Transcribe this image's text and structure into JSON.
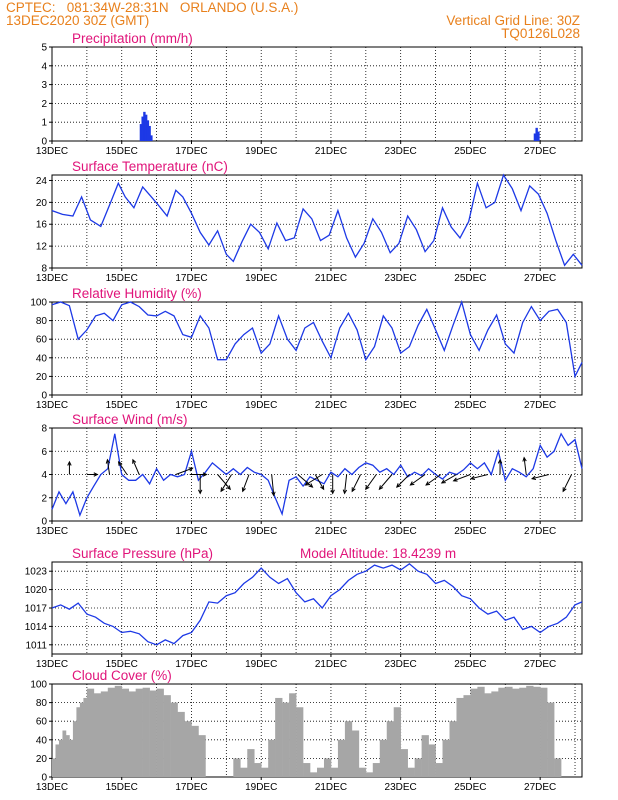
{
  "header": {
    "line1_left": "CPTEC:   081:34W-28:31N   ORLANDO (U.S.A.)",
    "line2_left": "13DEC2020 30Z (GMT)",
    "line1_right": "Vertical Grid Line: 30Z",
    "line2_right": "TQ0126L028"
  },
  "colors": {
    "header": "#e8801c",
    "panel_title": "#e0147a",
    "series": "#1d39e6",
    "cloud": "#a6a6a6",
    "wind_vector": "#000000"
  },
  "x_axis": {
    "tick_labels": [
      "13DEC",
      "15DEC",
      "17DEC",
      "19DEC",
      "21DEC",
      "23DEC",
      "25DEC",
      "27DEC"
    ],
    "tick_days": [
      13,
      15,
      17,
      19,
      21,
      23,
      25,
      27
    ],
    "range_days": [
      13,
      28.2
    ],
    "vertical_grid": "30Z daily"
  },
  "chart_data": [
    {
      "type": "bar",
      "title": "Precipitation (mm/h)",
      "ylim": [
        0,
        5
      ],
      "yticks": [
        0,
        1,
        2,
        3,
        4,
        5
      ],
      "x": [
        15.55,
        15.6,
        15.65,
        15.7,
        15.75,
        15.8,
        15.85,
        26.85,
        26.9,
        26.95
      ],
      "values": [
        0.9,
        1.3,
        1.55,
        1.4,
        1.1,
        0.8,
        0.3,
        0.4,
        0.7,
        0.5
      ]
    },
    {
      "type": "line",
      "title": "Surface Temperature (nC)",
      "ylim": [
        8,
        25
      ],
      "yticks": [
        8,
        12,
        16,
        20,
        24
      ],
      "x": [
        13.0,
        13.3,
        13.6,
        13.85,
        14.1,
        14.4,
        14.7,
        14.9,
        15.1,
        15.35,
        15.6,
        15.85,
        16.05,
        16.3,
        16.55,
        16.75,
        17.0,
        17.25,
        17.5,
        17.75,
        18.0,
        18.2,
        18.45,
        18.7,
        18.95,
        19.2,
        19.45,
        19.7,
        19.95,
        20.2,
        20.45,
        20.7,
        20.95,
        21.2,
        21.45,
        21.7,
        21.95,
        22.2,
        22.45,
        22.7,
        22.95,
        23.2,
        23.45,
        23.7,
        23.95,
        24.2,
        24.45,
        24.7,
        24.95,
        25.2,
        25.45,
        25.7,
        25.95,
        26.2,
        26.45,
        26.7,
        26.95,
        27.2,
        27.45,
        27.7,
        27.95,
        28.2
      ],
      "values": [
        18.5,
        17.8,
        17.5,
        21.0,
        16.8,
        15.6,
        20.3,
        23.5,
        21.0,
        19.0,
        22.8,
        21.0,
        19.5,
        17.5,
        22.2,
        21.0,
        18.0,
        14.5,
        12.2,
        14.8,
        10.5,
        9.2,
        12.8,
        16.0,
        14.5,
        11.5,
        16.2,
        13.0,
        13.5,
        18.8,
        17.0,
        13.0,
        14.0,
        18.5,
        13.5,
        10.0,
        12.5,
        17.0,
        14.5,
        10.8,
        12.5,
        17.5,
        15.0,
        11.0,
        13.0,
        19.0,
        15.5,
        13.5,
        16.5,
        23.5,
        19.0,
        20.0,
        25.0,
        22.5,
        18.5,
        23.0,
        21.5,
        18.0,
        13.0,
        8.5,
        10.5,
        8.5
      ]
    },
    {
      "type": "line",
      "title": "Relative Humidity (%)",
      "ylim": [
        0,
        100
      ],
      "yticks": [
        0,
        20,
        40,
        60,
        80,
        100
      ],
      "x": [
        13.0,
        13.25,
        13.5,
        13.75,
        14.0,
        14.25,
        14.5,
        14.75,
        15.0,
        15.25,
        15.5,
        15.75,
        16.0,
        16.25,
        16.5,
        16.75,
        17.0,
        17.25,
        17.5,
        17.75,
        18.0,
        18.25,
        18.5,
        18.75,
        19.0,
        19.25,
        19.5,
        19.75,
        20.0,
        20.25,
        20.5,
        20.75,
        21.0,
        21.25,
        21.5,
        21.75,
        22.0,
        22.25,
        22.5,
        22.75,
        23.0,
        23.25,
        23.5,
        23.75,
        24.0,
        24.25,
        24.5,
        24.75,
        25.0,
        25.25,
        25.5,
        25.75,
        26.0,
        26.25,
        26.5,
        26.75,
        27.0,
        27.25,
        27.5,
        27.75,
        28.0,
        28.2
      ],
      "values": [
        97,
        100,
        96,
        60,
        70,
        85,
        88,
        80,
        97,
        100,
        95,
        86,
        85,
        90,
        85,
        65,
        62,
        85,
        72,
        38,
        38,
        55,
        65,
        72,
        45,
        55,
        85,
        60,
        48,
        72,
        78,
        58,
        40,
        72,
        88,
        70,
        38,
        52,
        85,
        72,
        45,
        52,
        75,
        92,
        70,
        48,
        75,
        100,
        65,
        48,
        70,
        86,
        55,
        45,
        78,
        95,
        80,
        90,
        92,
        78,
        20,
        35
      ]
    },
    {
      "type": "line",
      "title": "Surface Wind (m/s)",
      "ylim": [
        0,
        8
      ],
      "yticks": [
        0,
        2,
        4,
        6,
        8
      ],
      "x": [
        13.0,
        13.2,
        13.4,
        13.6,
        13.8,
        14.0,
        14.2,
        14.4,
        14.6,
        14.8,
        15.0,
        15.2,
        15.4,
        15.6,
        15.8,
        16.0,
        16.2,
        16.4,
        16.6,
        16.8,
        17.0,
        17.2,
        17.4,
        17.6,
        17.8,
        18.0,
        18.2,
        18.4,
        18.6,
        18.8,
        19.0,
        19.2,
        19.4,
        19.6,
        19.8,
        20.0,
        20.2,
        20.4,
        20.6,
        20.8,
        21.0,
        21.2,
        21.4,
        21.6,
        21.8,
        22.0,
        22.2,
        22.4,
        22.6,
        22.8,
        23.0,
        23.2,
        23.4,
        23.6,
        23.8,
        24.0,
        24.2,
        24.4,
        24.6,
        24.8,
        25.0,
        25.2,
        25.4,
        25.6,
        25.8,
        26.0,
        26.2,
        26.4,
        26.6,
        26.8,
        27.0,
        27.2,
        27.4,
        27.6,
        27.8,
        28.0,
        28.2
      ],
      "values": [
        1.0,
        2.5,
        1.5,
        2.5,
        0.5,
        2.0,
        3.0,
        4.0,
        4.5,
        7.5,
        4.0,
        3.5,
        3.5,
        4.0,
        3.2,
        4.5,
        3.5,
        4.0,
        3.8,
        4.0,
        6.0,
        3.5,
        4.2,
        5.0,
        4.5,
        4.0,
        4.5,
        4.0,
        4.6,
        4.2,
        4.0,
        3.5,
        2.0,
        0.6,
        3.5,
        3.8,
        3.0,
        3.8,
        3.5,
        3.2,
        4.2,
        3.8,
        4.5,
        4.0,
        4.6,
        5.0,
        4.8,
        4.2,
        4.5,
        4.0,
        4.8,
        3.8,
        4.2,
        3.9,
        4.5,
        4.0,
        3.6,
        4.2,
        4.0,
        4.4,
        5.0,
        4.5,
        5.0,
        4.0,
        6.0,
        3.5,
        4.5,
        4.2,
        3.8,
        4.5,
        6.5,
        5.5,
        6.0,
        7.5,
        6.5,
        7.0,
        4.5
      ]
    },
    {
      "type": "line",
      "title": "Surface Pressure (hPa)",
      "annotation": "Model Altitude: 18.4239  m",
      "ylim": [
        1009.5,
        1024.5
      ],
      "yticks": [
        1011,
        1014,
        1017,
        1020,
        1023
      ],
      "x": [
        13.0,
        13.25,
        13.5,
        13.75,
        14.0,
        14.25,
        14.5,
        14.75,
        15.0,
        15.25,
        15.5,
        15.75,
        16.0,
        16.25,
        16.5,
        16.75,
        17.0,
        17.25,
        17.5,
        17.75,
        18.0,
        18.25,
        18.5,
        18.75,
        19.0,
        19.25,
        19.5,
        19.75,
        20.0,
        20.25,
        20.5,
        20.75,
        21.0,
        21.25,
        21.5,
        21.75,
        22.0,
        22.25,
        22.5,
        22.75,
        23.0,
        23.25,
        23.5,
        23.75,
        24.0,
        24.25,
        24.5,
        24.75,
        25.0,
        25.25,
        25.5,
        25.75,
        26.0,
        26.25,
        26.5,
        26.75,
        27.0,
        27.25,
        27.5,
        27.75,
        28.0,
        28.2
      ],
      "values": [
        1017.0,
        1017.5,
        1016.8,
        1017.8,
        1016.0,
        1015.5,
        1014.5,
        1014.0,
        1013.0,
        1013.2,
        1012.8,
        1011.5,
        1011.0,
        1011.8,
        1011.2,
        1012.5,
        1013.0,
        1015.0,
        1018.0,
        1017.8,
        1019.0,
        1019.5,
        1021.0,
        1022.0,
        1023.5,
        1022.0,
        1021.0,
        1021.8,
        1019.5,
        1018.0,
        1018.5,
        1017.0,
        1019.0,
        1020.0,
        1021.5,
        1022.5,
        1023.0,
        1024.0,
        1023.5,
        1024.0,
        1023.2,
        1024.2,
        1023.0,
        1022.5,
        1021.0,
        1021.5,
        1020.5,
        1019.0,
        1018.5,
        1017.0,
        1016.0,
        1016.5,
        1015.0,
        1015.5,
        1013.5,
        1014.0,
        1013.0,
        1014.0,
        1014.5,
        1015.5,
        1017.5,
        1018.0
      ]
    },
    {
      "type": "area",
      "title": "Cloud Cover (%)",
      "ylim": [
        0,
        100
      ],
      "yticks": [
        0,
        20,
        40,
        60,
        80,
        100
      ],
      "x": [
        13.0,
        13.1,
        13.2,
        13.3,
        13.4,
        13.5,
        13.6,
        13.7,
        13.8,
        13.9,
        14.0,
        14.2,
        14.4,
        14.6,
        14.8,
        15.0,
        15.2,
        15.4,
        15.6,
        15.8,
        16.0,
        16.2,
        16.4,
        16.6,
        16.8,
        17.0,
        17.2,
        17.4,
        17.6,
        17.8,
        18.0,
        18.2,
        18.4,
        18.6,
        18.8,
        19.0,
        19.2,
        19.4,
        19.6,
        19.8,
        20.0,
        20.2,
        20.4,
        20.6,
        20.8,
        21.0,
        21.2,
        21.4,
        21.6,
        21.8,
        22.0,
        22.2,
        22.4,
        22.6,
        22.8,
        23.0,
        23.2,
        23.4,
        23.6,
        23.8,
        24.0,
        24.2,
        24.4,
        24.6,
        24.8,
        25.0,
        25.2,
        25.4,
        25.6,
        25.8,
        26.0,
        26.2,
        26.4,
        26.6,
        26.8,
        27.0,
        27.2,
        27.4,
        27.6,
        27.8,
        28.0,
        28.2
      ],
      "values": [
        20,
        35,
        40,
        50,
        45,
        40,
        60,
        75,
        80,
        85,
        95,
        90,
        92,
        96,
        98,
        95,
        92,
        95,
        96,
        93,
        95,
        88,
        80,
        70,
        60,
        55,
        45,
        0,
        0,
        0,
        0,
        20,
        10,
        30,
        15,
        10,
        40,
        85,
        80,
        90,
        75,
        15,
        5,
        10,
        20,
        10,
        40,
        60,
        50,
        10,
        5,
        15,
        40,
        60,
        75,
        30,
        10,
        20,
        45,
        35,
        15,
        40,
        60,
        85,
        88,
        95,
        97,
        90,
        92,
        96,
        97,
        95,
        96,
        98,
        97,
        96,
        80,
        20,
        0,
        0,
        0,
        0
      ]
    }
  ],
  "wind_vectors": [
    {
      "x": 13.5,
      "u": 0.0,
      "v": -3.0
    },
    {
      "x": 14.0,
      "u": 2.5,
      "v": 0.0
    },
    {
      "x": 14.65,
      "u": -0.5,
      "v": -3.5
    },
    {
      "x": 15.15,
      "u": -2.0,
      "v": -3.0
    },
    {
      "x": 15.5,
      "u": -1.5,
      "v": -3.5
    },
    {
      "x": 16.55,
      "u": 4.0,
      "v": -1.5
    },
    {
      "x": 16.95,
      "u": 4.0,
      "v": 0.0
    },
    {
      "x": 17.25,
      "u": 0.0,
      "v": 4.5
    },
    {
      "x": 17.75,
      "u": 3.0,
      "v": 3.5
    },
    {
      "x": 18.15,
      "u": -2.5,
      "v": 4.0
    },
    {
      "x": 18.65,
      "u": -1.5,
      "v": 4.0
    },
    {
      "x": 19.3,
      "u": 0.5,
      "v": 5.0
    },
    {
      "x": 20.05,
      "u": 3.5,
      "v": 3.0
    },
    {
      "x": 20.55,
      "u": 2.0,
      "v": 3.5
    },
    {
      "x": 20.75,
      "u": -4.0,
      "v": 2.5
    },
    {
      "x": 21.05,
      "u": 0.0,
      "v": 4.5
    },
    {
      "x": 21.45,
      "u": -0.5,
      "v": 4.5
    },
    {
      "x": 21.85,
      "u": -2.0,
      "v": 4.0
    },
    {
      "x": 22.3,
      "u": -2.5,
      "v": 3.5
    },
    {
      "x": 22.75,
      "u": -3.0,
      "v": 3.5
    },
    {
      "x": 23.25,
      "u": -3.0,
      "v": 3.0
    },
    {
      "x": 23.7,
      "u": -3.5,
      "v": 2.5
    },
    {
      "x": 24.15,
      "u": -3.5,
      "v": 2.5
    },
    {
      "x": 24.6,
      "u": -3.5,
      "v": 2.0
    },
    {
      "x": 25.0,
      "u": -4.0,
      "v": 1.5
    },
    {
      "x": 25.5,
      "u": -4.0,
      "v": 1.0
    },
    {
      "x": 25.85,
      "u": 0.0,
      "v": -3.5
    },
    {
      "x": 26.6,
      "u": -0.5,
      "v": -4.0
    },
    {
      "x": 27.25,
      "u": -4.0,
      "v": 1.0
    },
    {
      "x": 27.9,
      "u": -2.0,
      "v": 4.0
    }
  ]
}
